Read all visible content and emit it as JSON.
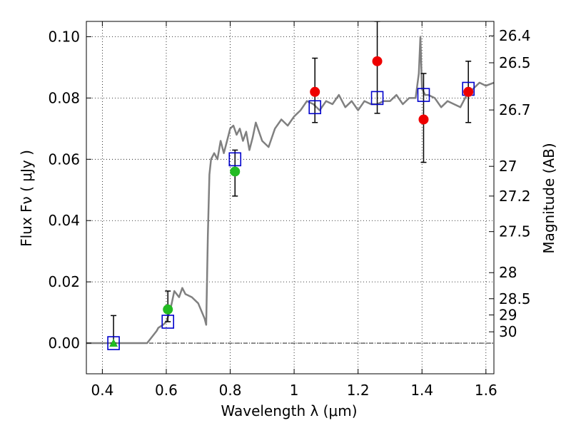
{
  "chart_data": {
    "type": "scatter",
    "xlabel": "Wavelength  λ (μm)",
    "ylabel": "Flux  Fν  ( μJy )",
    "y2label": "Magnitude (AB)",
    "xlim": [
      0.35,
      1.625
    ],
    "ylim": [
      -0.01,
      0.105
    ],
    "grid": true,
    "x_ticks": [
      {
        "value": 0.4,
        "label": "0.4"
      },
      {
        "value": 0.6,
        "label": "0.6"
      },
      {
        "value": 0.8,
        "label": "0.8"
      },
      {
        "value": 1.0,
        "label": "1"
      },
      {
        "value": 1.2,
        "label": "1.2"
      },
      {
        "value": 1.4,
        "label": "1.4"
      },
      {
        "value": 1.6,
        "label": "1.6"
      }
    ],
    "y_ticks": [
      {
        "value": 0.0,
        "label": "0.00"
      },
      {
        "value": 0.02,
        "label": "0.02"
      },
      {
        "value": 0.04,
        "label": "0.04"
      },
      {
        "value": 0.06,
        "label": "0.06"
      },
      {
        "value": 0.08,
        "label": "0.08"
      },
      {
        "value": 0.1,
        "label": "0.10"
      }
    ],
    "mag_ticks": [
      {
        "label": "26.4",
        "flux": 0.1003
      },
      {
        "label": "26.5",
        "flux": 0.0915
      },
      {
        "label": "26.7",
        "flux": 0.0761
      },
      {
        "label": "27",
        "flux": 0.0577
      },
      {
        "label": "27.2",
        "flux": 0.048
      },
      {
        "label": "27.5",
        "flux": 0.0364
      },
      {
        "label": "28",
        "flux": 0.023
      },
      {
        "label": "28.5",
        "flux": 0.0145
      },
      {
        "label": "29",
        "flux": 0.0092
      },
      {
        "label": "30",
        "flux": 0.0037
      }
    ],
    "model_spectrum": {
      "color": "#808080",
      "x": [
        0.35,
        0.54,
        0.57,
        0.575,
        0.59,
        0.6,
        0.61,
        0.615,
        0.625,
        0.64,
        0.65,
        0.66,
        0.68,
        0.7,
        0.72,
        0.725,
        0.73,
        0.735,
        0.74,
        0.75,
        0.76,
        0.77,
        0.78,
        0.79,
        0.8,
        0.81,
        0.82,
        0.83,
        0.84,
        0.85,
        0.86,
        0.87,
        0.88,
        0.9,
        0.92,
        0.94,
        0.96,
        0.98,
        1.0,
        1.02,
        1.04,
        1.06,
        1.08,
        1.1,
        1.12,
        1.14,
        1.16,
        1.18,
        1.2,
        1.22,
        1.24,
        1.26,
        1.28,
        1.3,
        1.32,
        1.34,
        1.36,
        1.38,
        1.39,
        1.395,
        1.4,
        1.41,
        1.42,
        1.44,
        1.46,
        1.48,
        1.5,
        1.52,
        1.54,
        1.56,
        1.58,
        1.6,
        1.625
      ],
      "y": [
        0.0,
        0.0,
        0.004,
        0.005,
        0.006,
        0.007,
        0.01,
        0.012,
        0.017,
        0.015,
        0.018,
        0.016,
        0.015,
        0.013,
        0.008,
        0.006,
        0.035,
        0.055,
        0.06,
        0.062,
        0.06,
        0.066,
        0.062,
        0.066,
        0.07,
        0.071,
        0.068,
        0.07,
        0.066,
        0.069,
        0.063,
        0.067,
        0.072,
        0.066,
        0.064,
        0.07,
        0.073,
        0.071,
        0.074,
        0.076,
        0.079,
        0.078,
        0.076,
        0.079,
        0.078,
        0.081,
        0.077,
        0.079,
        0.076,
        0.079,
        0.078,
        0.078,
        0.079,
        0.079,
        0.081,
        0.078,
        0.08,
        0.08,
        0.088,
        0.1,
        0.083,
        0.081,
        0.081,
        0.08,
        0.077,
        0.079,
        0.078,
        0.077,
        0.081,
        0.083,
        0.085,
        0.084,
        0.085
      ]
    },
    "series": [
      {
        "marker": "square",
        "color": "#0000cc",
        "x": [
          0.435,
          0.605,
          0.815,
          1.065,
          1.26,
          1.405,
          1.545
        ],
        "y": [
          0.0,
          0.007,
          0.06,
          0.077,
          0.08,
          0.081,
          0.083
        ]
      },
      {
        "marker": "circle",
        "color": "#22bb22",
        "x": [
          0.605,
          0.815
        ],
        "y": [
          0.011,
          0.056
        ],
        "err_low": [
          0.004,
          0.008
        ],
        "err_high": [
          0.006,
          0.007
        ]
      },
      {
        "marker": "triangle",
        "color": "#22bb22",
        "x": [
          0.435
        ],
        "y": [
          0.0
        ],
        "err_low": [
          0.0
        ],
        "err_high": [
          0.009
        ]
      },
      {
        "marker": "circle",
        "color": "#ee0000",
        "x": [
          1.065,
          1.26,
          1.405,
          1.545
        ],
        "y": [
          0.082,
          0.092,
          0.073,
          0.082
        ],
        "err_low": [
          0.01,
          0.017,
          0.014,
          0.01
        ],
        "err_high": [
          0.011,
          0.013,
          0.015,
          0.01
        ]
      }
    ]
  }
}
